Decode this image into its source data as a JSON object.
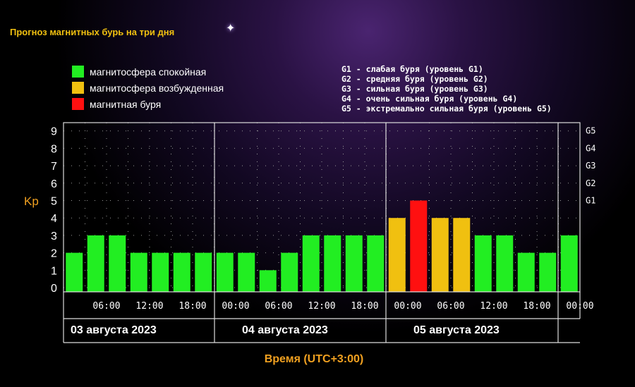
{
  "title": "Прогноз магнитных бурь на три дня",
  "legend": [
    {
      "label": "магнитосфера спокойная",
      "color": "#22ee22"
    },
    {
      "label": "магнитосфера возбужденная",
      "color": "#f0c010"
    },
    {
      "label": "магнитная буря",
      "color": "#ff1010"
    }
  ],
  "g_legend": [
    "G1 - слабая буря (уровень G1)",
    "G2 - средняя буря (уровень G2)",
    "G3 - сильная буря (уровень G3)",
    "G4 - очень сильная буря (уровень G4)",
    "G5 - экстремально сильная буря (уровень G5)"
  ],
  "chart_data": {
    "type": "bar",
    "ylabel": "Kp",
    "xlabel": "Время (UTC+3:00)",
    "ylim": [
      0,
      9
    ],
    "y_ticks": [
      "0",
      "1",
      "2",
      "3",
      "4",
      "5",
      "6",
      "7",
      "8",
      "9"
    ],
    "g_ticks": [
      {
        "label": "G1",
        "kp": 5
      },
      {
        "label": "G2",
        "kp": 6
      },
      {
        "label": "G3",
        "kp": 7
      },
      {
        "label": "G4",
        "kp": 8
      },
      {
        "label": "G5",
        "kp": 9
      }
    ],
    "x_ticks": [
      "06:00",
      "12:00",
      "18:00",
      "00:00",
      "06:00",
      "12:00",
      "18:00",
      "00:00",
      "06:00",
      "12:00",
      "18:00",
      "00:00"
    ],
    "days": [
      "03 августа 2023",
      "04 августа 2023",
      "05 августа 2023"
    ],
    "values": [
      2,
      3,
      3,
      2,
      2,
      2,
      2,
      2,
      2,
      1,
      2,
      3,
      3,
      3,
      3,
      4,
      5,
      4,
      4,
      3,
      3,
      2,
      2,
      3
    ],
    "colors": {
      "quiet": "#22ee22",
      "active": "#f0c010",
      "storm": "#ff1010"
    },
    "grid": true
  }
}
